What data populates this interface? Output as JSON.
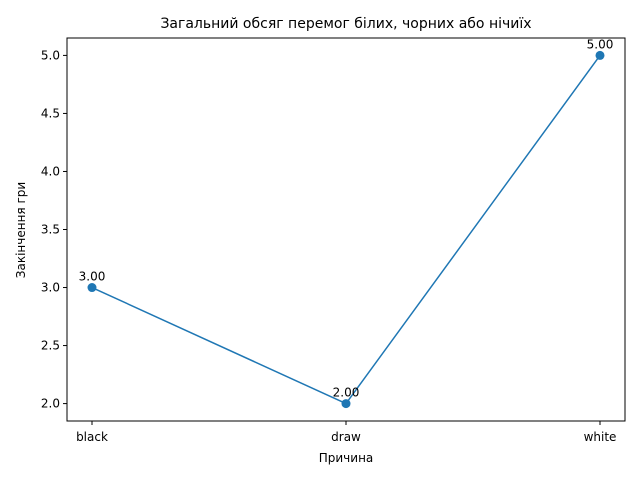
{
  "chart_data": {
    "type": "line",
    "title": "Загальний обсяг перемог білих, чорних або нічиїх",
    "xlabel": "Причина",
    "ylabel": "Закінчення гри",
    "categories": [
      "black",
      "draw",
      "white"
    ],
    "series": [
      {
        "values": [
          3.0,
          2.0,
          5.0
        ],
        "data_labels": [
          "3.00",
          "2.00",
          "5.00"
        ],
        "color": "#1f77b4",
        "marker": "circle"
      }
    ],
    "yticks": [
      2.0,
      2.5,
      3.0,
      3.5,
      4.0,
      4.5,
      5.0
    ],
    "ytick_labels": [
      "2.0",
      "2.5",
      "3.0",
      "3.5",
      "4.0",
      "4.5",
      "5.0"
    ],
    "ylim": [
      1.85,
      5.15
    ],
    "grid": false,
    "legend": "none"
  }
}
